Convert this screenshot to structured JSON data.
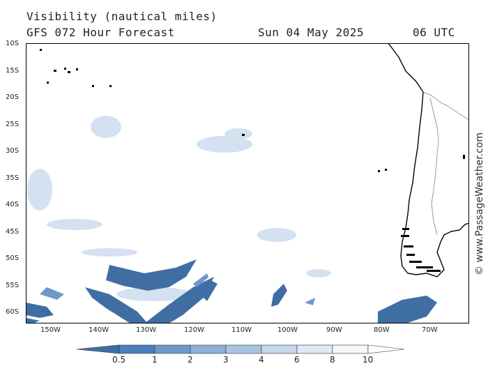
{
  "header": {
    "title": "Visibility (nautical miles)",
    "subtitle": "GFS 072 Hour Forecast",
    "date": "Sun 04 May 2025",
    "time": "06 UTC"
  },
  "lat_labels": [
    "10S",
    "15S",
    "20S",
    "25S",
    "30S",
    "35S",
    "40S",
    "45S",
    "50S",
    "55S",
    "60S"
  ],
  "lon_labels": [
    "150W",
    "140W",
    "130W",
    "120W",
    "110W",
    "100W",
    "90W",
    "80W",
    "70W"
  ],
  "credit": "© www.PassageWeather.com",
  "legend": {
    "labels": [
      "0.5",
      "1",
      "2",
      "3",
      "4",
      "6",
      "8",
      "10"
    ],
    "colors": [
      "#3f6ea3",
      "#4a7fbd",
      "#6f98c9",
      "#8dafd6",
      "#a9c3e2",
      "#c6d7ec",
      "#dfe8f4",
      "#f4f7fb",
      "#ffffff"
    ]
  },
  "colors": {
    "land_outline": "#000000",
    "border": "#9a9a9a",
    "low_vis": "#3f6ea3"
  }
}
